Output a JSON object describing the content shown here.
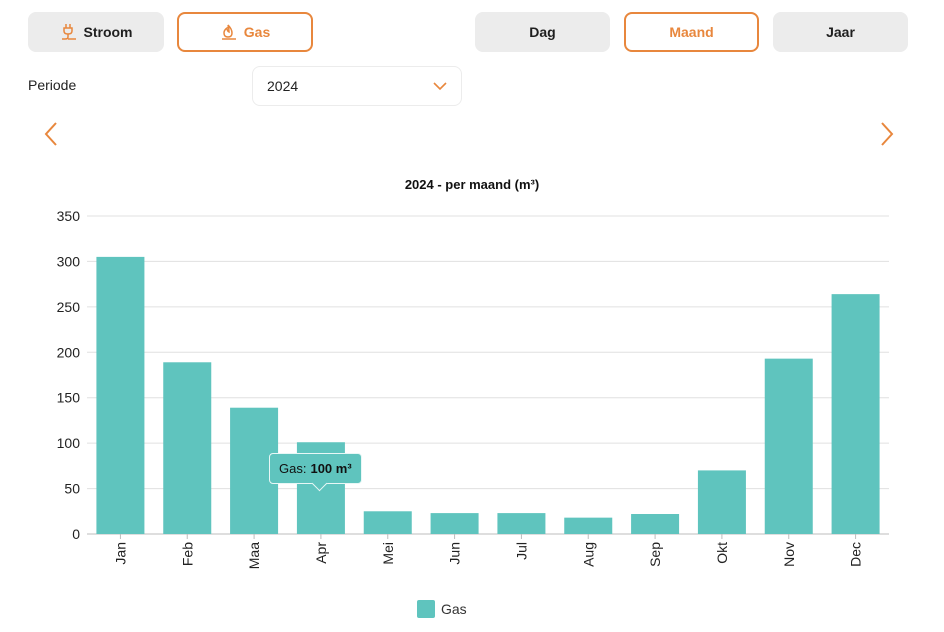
{
  "energy_tabs": [
    {
      "label": "Stroom",
      "icon": "plug-icon",
      "active": false
    },
    {
      "label": "Gas",
      "icon": "flame-icon",
      "active": true
    }
  ],
  "period_tabs": [
    {
      "label": "Dag",
      "active": false
    },
    {
      "label": "Maand",
      "active": true
    },
    {
      "label": "Jaar",
      "active": false
    }
  ],
  "periode": {
    "label": "Periode",
    "selected": "2024"
  },
  "navigation": {
    "prev_icon": "chevron-left-icon",
    "next_icon": "chevron-right-icon"
  },
  "tooltip": {
    "label": "Gas:",
    "value": "100 m³"
  },
  "colors": {
    "accent": "#e8873d",
    "bar": "#5fc4be",
    "grid": "#e0e0e0"
  },
  "chart_data": {
    "type": "bar",
    "title": "2024 - per maand (m³)",
    "categories": [
      "Jan",
      "Feb",
      "Maa",
      "Apr",
      "Mei",
      "Jun",
      "Jul",
      "Aug",
      "Sep",
      "Okt",
      "Nov",
      "Dec"
    ],
    "series": [
      {
        "name": "Gas",
        "values": [
          305,
          189,
          139,
          101,
          25,
          23,
          23,
          18,
          22,
          70,
          193,
          264
        ]
      }
    ],
    "ylim": [
      0,
      350
    ],
    "yticks": [
      0,
      50,
      100,
      150,
      200,
      250,
      300,
      350
    ],
    "grid": true,
    "legend": "bottom"
  }
}
